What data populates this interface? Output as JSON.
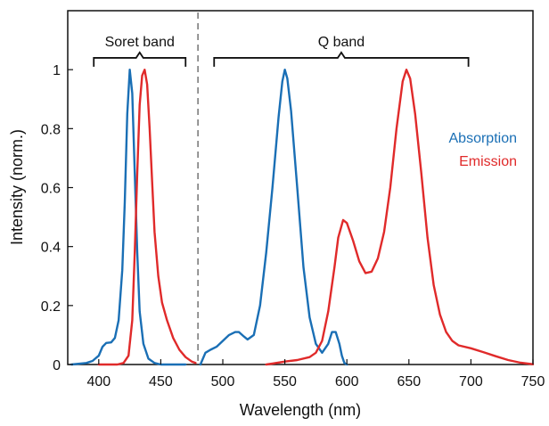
{
  "chart_data": {
    "type": "line",
    "xlabel": "Wavelength (nm)",
    "ylabel": "Intensity (norm.)",
    "xlim": [
      375,
      750
    ],
    "ylim": [
      0,
      1.2
    ],
    "xticks": [
      {
        "value": 400,
        "label": "400"
      },
      {
        "value": 450,
        "label": "450"
      },
      {
        "value": 500,
        "label": "500"
      },
      {
        "value": 550,
        "label": "550"
      },
      {
        "value": 600,
        "label": "600"
      },
      {
        "value": 650,
        "label": "650"
      },
      {
        "value": 700,
        "label": "700"
      },
      {
        "value": 750,
        "label": "750"
      }
    ],
    "yticks": [
      {
        "value": 0,
        "label": "0"
      },
      {
        "value": 0.2,
        "label": "0.2"
      },
      {
        "value": 0.4,
        "label": "0.4"
      },
      {
        "value": 0.6,
        "label": "0.6"
      },
      {
        "value": 0.8,
        "label": "0.8"
      },
      {
        "value": 1.0,
        "label": "1"
      }
    ],
    "grid": false,
    "legend_position": "right",
    "divider": {
      "x": 480,
      "style": "dashed",
      "color": "#888888"
    },
    "annotations": [
      {
        "text": "Soret band",
        "x_start": 396,
        "x_end": 470,
        "y": 1.04
      },
      {
        "text": "Q band",
        "x_start": 493,
        "x_end": 698,
        "y": 1.04
      }
    ],
    "series": [
      {
        "name": "Absorption",
        "color": "#1a6fb5",
        "segments": [
          [
            [
              378,
              0
            ],
            [
              390,
              0.005
            ],
            [
              395,
              0.012
            ],
            [
              400,
              0.03
            ],
            [
              403,
              0.06
            ],
            [
              406,
              0.073
            ],
            [
              410,
              0.075
            ],
            [
              413,
              0.09
            ],
            [
              416,
              0.15
            ],
            [
              419,
              0.32
            ],
            [
              421,
              0.55
            ],
            [
              423,
              0.85
            ],
            [
              425,
              1.0
            ],
            [
              427,
              0.92
            ],
            [
              429,
              0.65
            ],
            [
              431,
              0.38
            ],
            [
              433,
              0.18
            ],
            [
              436,
              0.07
            ],
            [
              440,
              0.02
            ],
            [
              445,
              0.005
            ],
            [
              450,
              0.0
            ],
            [
              470,
              0.0
            ]
          ],
          [
            [
              482,
              0.0
            ],
            [
              484,
              0.02
            ],
            [
              486,
              0.04
            ],
            [
              490,
              0.05
            ],
            [
              495,
              0.06
            ],
            [
              500,
              0.08
            ],
            [
              505,
              0.1
            ],
            [
              510,
              0.11
            ],
            [
              513,
              0.11
            ],
            [
              517,
              0.095
            ],
            [
              520,
              0.085
            ],
            [
              525,
              0.1
            ],
            [
              530,
              0.2
            ],
            [
              535,
              0.38
            ],
            [
              540,
              0.6
            ],
            [
              545,
              0.84
            ],
            [
              548,
              0.96
            ],
            [
              550,
              1.0
            ],
            [
              552,
              0.97
            ],
            [
              555,
              0.86
            ],
            [
              560,
              0.6
            ],
            [
              565,
              0.33
            ],
            [
              570,
              0.16
            ],
            [
              575,
              0.07
            ],
            [
              580,
              0.04
            ],
            [
              585,
              0.07
            ],
            [
              588,
              0.11
            ],
            [
              591,
              0.11
            ],
            [
              594,
              0.07
            ],
            [
              596,
              0.03
            ],
            [
              598,
              0.005
            ],
            [
              600,
              0.0
            ]
          ]
        ]
      },
      {
        "name": "Emission",
        "color": "#e02a2a",
        "segments": [
          [
            [
              400,
              0.0
            ],
            [
              415,
              0.0
            ],
            [
              420,
              0.005
            ],
            [
              424,
              0.03
            ],
            [
              427,
              0.15
            ],
            [
              429,
              0.38
            ],
            [
              431,
              0.65
            ],
            [
              433,
              0.88
            ],
            [
              435,
              0.98
            ],
            [
              437,
              1.0
            ],
            [
              439,
              0.95
            ],
            [
              441,
              0.8
            ],
            [
              443,
              0.62
            ],
            [
              445,
              0.45
            ],
            [
              448,
              0.3
            ],
            [
              451,
              0.21
            ],
            [
              455,
              0.15
            ],
            [
              460,
              0.09
            ],
            [
              465,
              0.05
            ],
            [
              470,
              0.025
            ],
            [
              475,
              0.01
            ],
            [
              478,
              0.005
            ]
          ],
          [
            [
              535,
              0.0
            ],
            [
              540,
              0.003
            ],
            [
              550,
              0.01
            ],
            [
              560,
              0.015
            ],
            [
              570,
              0.025
            ],
            [
              575,
              0.04
            ],
            [
              580,
              0.08
            ],
            [
              585,
              0.18
            ],
            [
              590,
              0.33
            ],
            [
              593,
              0.43
            ],
            [
              597,
              0.49
            ],
            [
              600,
              0.48
            ],
            [
              605,
              0.42
            ],
            [
              610,
              0.35
            ],
            [
              615,
              0.31
            ],
            [
              620,
              0.315
            ],
            [
              625,
              0.36
            ],
            [
              630,
              0.45
            ],
            [
              635,
              0.6
            ],
            [
              640,
              0.8
            ],
            [
              645,
              0.96
            ],
            [
              648,
              1.0
            ],
            [
              651,
              0.97
            ],
            [
              655,
              0.85
            ],
            [
              660,
              0.65
            ],
            [
              665,
              0.43
            ],
            [
              670,
              0.27
            ],
            [
              675,
              0.17
            ],
            [
              680,
              0.11
            ],
            [
              685,
              0.08
            ],
            [
              690,
              0.065
            ],
            [
              700,
              0.055
            ],
            [
              710,
              0.042
            ],
            [
              720,
              0.028
            ],
            [
              730,
              0.015
            ],
            [
              740,
              0.006
            ],
            [
              750,
              0.001
            ]
          ]
        ]
      }
    ]
  }
}
